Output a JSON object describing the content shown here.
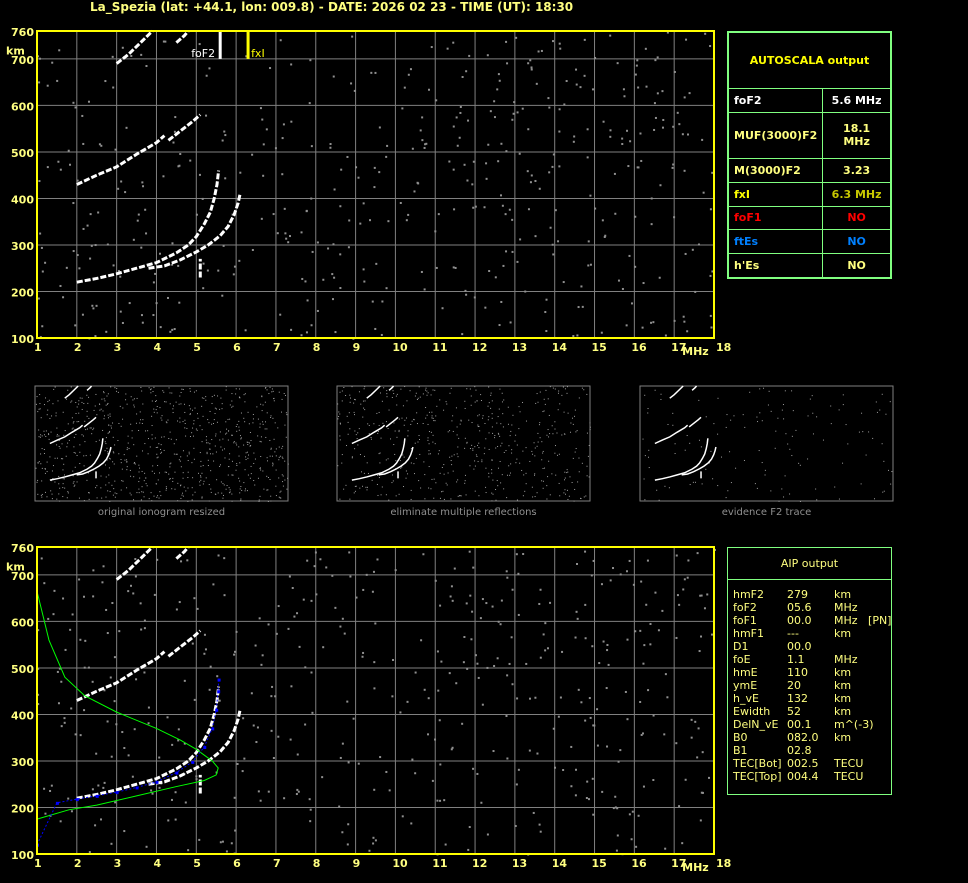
{
  "title": "La_Spezia (lat: +44.1, lon: 009.8) - DATE: 2026 02 23 - TIME (UT): 18:30",
  "autoscala": {
    "header": "AUTOSCALA output",
    "rows": [
      {
        "label": "foF2",
        "value": "5.6 MHz",
        "color": "#ffffff"
      },
      {
        "label": "MUF(3000)F2",
        "value": "18.1 MHz",
        "color": "#ffff80"
      },
      {
        "label": "M(3000)F2",
        "value": "3.23",
        "color": "#ffff80"
      },
      {
        "label": "fxI",
        "value": "6.3 MHz",
        "color": "#ffff00",
        "value_color": "#c8c800"
      },
      {
        "label": "foF1",
        "value": "NO",
        "color": "#ff0000"
      },
      {
        "label": "ftEs",
        "value": "NO",
        "color": "#0080ff"
      },
      {
        "label": "h'Es",
        "value": "NO",
        "color": "#ffff80"
      }
    ]
  },
  "aip": {
    "header": "AIP output",
    "rows": [
      [
        "hmF2",
        "279",
        "km"
      ],
      [
        "foF2",
        "05.6",
        "MHz"
      ],
      [
        "foF1",
        "00.0",
        "MHz   [PN]"
      ],
      [
        "hmF1",
        "---",
        "km"
      ],
      [
        "D1",
        "00.0",
        ""
      ],
      [
        "foE",
        "1.1",
        "MHz"
      ],
      [
        "hmE",
        "110",
        "km"
      ],
      [
        "ymE",
        "20",
        "km"
      ],
      [
        "h_vE",
        "132",
        "km"
      ],
      [
        "Ewidth",
        "52",
        "km"
      ],
      [
        "DelN_vE",
        "00.1",
        "m^(-3)"
      ],
      [
        "B0",
        "082.0",
        "km"
      ],
      [
        "B1",
        "02.8",
        ""
      ],
      [
        "TEC[Bot]",
        "002.5",
        "TECU"
      ],
      [
        "TEC[Top]",
        "004.4",
        "TECU"
      ]
    ]
  },
  "thumb_captions": [
    "original ionogram resized",
    "eliminate multiple reflections",
    "evidence F2 trace"
  ],
  "chart_data": {
    "type": "scatter",
    "xlabel": "MHz",
    "ylabel": "km",
    "xlim": [
      1,
      18
    ],
    "ylim": [
      100,
      760
    ],
    "xticks": [
      1,
      2,
      3,
      4,
      5,
      6,
      7,
      8,
      9,
      10,
      11,
      12,
      13,
      14,
      15,
      16,
      17,
      18
    ],
    "yticks": [
      100,
      200,
      300,
      400,
      500,
      600,
      700,
      760
    ],
    "grid": true,
    "colors": {
      "axis": "#ffff00",
      "grid": "#808080",
      "trace": "#ffffff",
      "profile": "#00ff00",
      "fit": "#0000ff"
    },
    "markers": [
      {
        "label": "foF2",
        "x": 5.6,
        "color": "#ffffff"
      },
      {
        "label": "fxI",
        "x": 6.3,
        "color": "#ffff00"
      }
    ],
    "traces": {
      "o_f2": [
        [
          2.0,
          220
        ],
        [
          2.5,
          228
        ],
        [
          3.0,
          238
        ],
        [
          3.5,
          250
        ],
        [
          4.0,
          262
        ],
        [
          4.5,
          283
        ],
        [
          4.8,
          300
        ],
        [
          5.0,
          318
        ],
        [
          5.2,
          345
        ],
        [
          5.35,
          370
        ],
        [
          5.45,
          400
        ],
        [
          5.52,
          430
        ],
        [
          5.56,
          460
        ]
      ],
      "x_f2": [
        [
          3.8,
          250
        ],
        [
          4.2,
          255
        ],
        [
          4.6,
          268
        ],
        [
          5.0,
          285
        ],
        [
          5.3,
          300
        ],
        [
          5.6,
          320
        ],
        [
          5.8,
          340
        ],
        [
          5.95,
          365
        ],
        [
          6.05,
          390
        ],
        [
          6.1,
          410
        ]
      ],
      "o_f2_2hop": [
        [
          2.0,
          430
        ],
        [
          2.5,
          450
        ],
        [
          3.0,
          468
        ],
        [
          3.5,
          495
        ],
        [
          4.0,
          520
        ],
        [
          4.2,
          535
        ]
      ],
      "x_f2_2hop": [
        [
          4.3,
          525
        ],
        [
          4.6,
          545
        ],
        [
          4.9,
          565
        ],
        [
          5.1,
          580
        ]
      ],
      "o_f2_3hop": [
        [
          3.0,
          690
        ],
        [
          3.3,
          710
        ],
        [
          3.6,
          735
        ],
        [
          3.9,
          760
        ]
      ],
      "x_f2_3hop": [
        [
          4.5,
          735
        ],
        [
          4.7,
          750
        ],
        [
          4.8,
          760
        ]
      ],
      "spread": [
        [
          5.1,
          230
        ],
        [
          5.1,
          270
        ]
      ]
    },
    "aip_profile": [
      [
        1.0,
        665
      ],
      [
        1.3,
        560
      ],
      [
        1.7,
        480
      ],
      [
        2.2,
        440
      ],
      [
        3.0,
        405
      ],
      [
        4.0,
        370
      ],
      [
        4.6,
        345
      ],
      [
        5.0,
        325
      ],
      [
        5.4,
        300
      ],
      [
        5.55,
        285
      ],
      [
        5.5,
        270
      ],
      [
        5.2,
        258
      ],
      [
        4.5,
        245
      ],
      [
        3.5,
        225
      ],
      [
        2.5,
        205
      ],
      [
        1.8,
        195
      ],
      [
        1.0,
        175
      ]
    ],
    "aip_fit": [
      [
        1.0,
        120
      ],
      [
        1.5,
        210
      ],
      [
        2.0,
        218
      ],
      [
        2.5,
        225
      ],
      [
        3.0,
        233
      ],
      [
        3.5,
        243
      ],
      [
        4.0,
        255
      ],
      [
        4.5,
        275
      ],
      [
        4.9,
        298
      ],
      [
        5.2,
        330
      ],
      [
        5.4,
        370
      ],
      [
        5.5,
        410
      ],
      [
        5.55,
        450
      ],
      [
        5.56,
        475
      ]
    ]
  }
}
